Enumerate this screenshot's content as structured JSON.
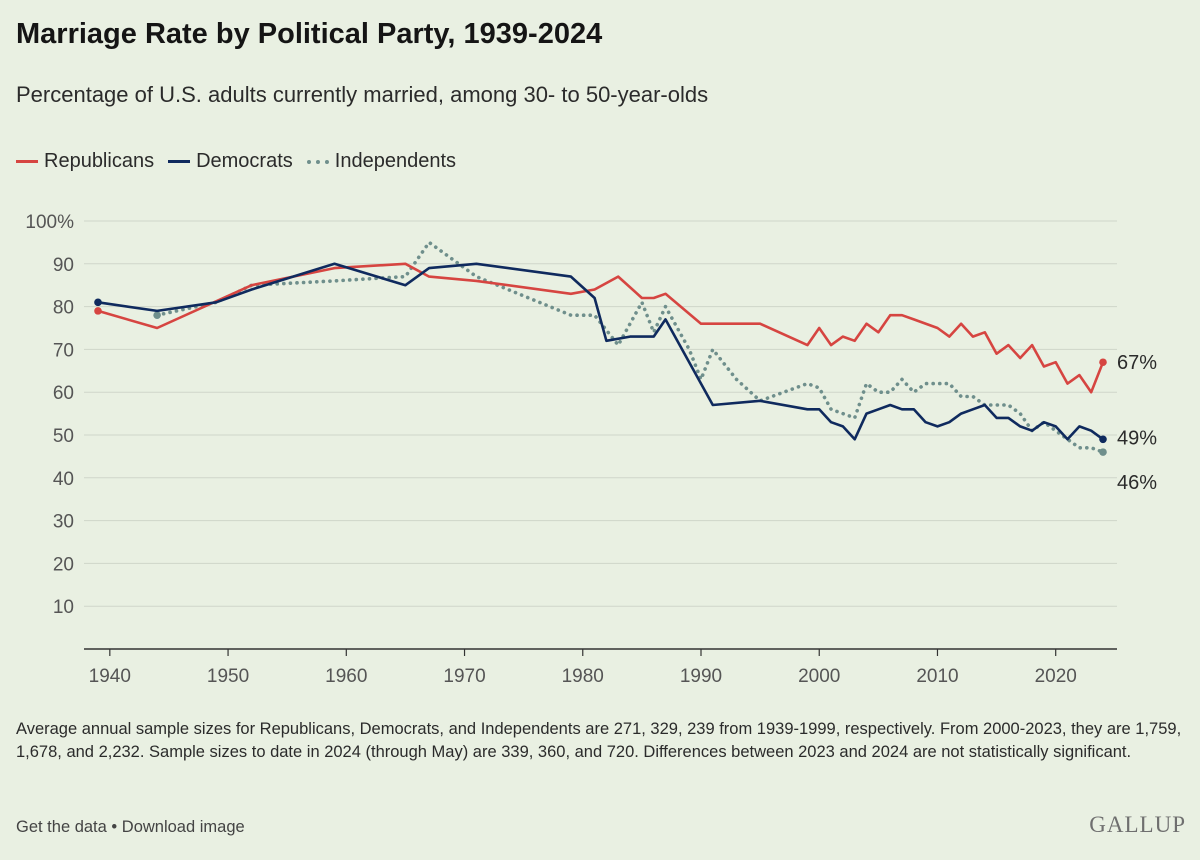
{
  "chart_data": {
    "type": "line",
    "title": "Marriage Rate by Political Party, 1939-2024",
    "subtitle": "Percentage of U.S. adults currently married, among 30- to 50-year-olds",
    "xlabel": "",
    "ylabel": "",
    "xlim": [
      1939,
      2024
    ],
    "ylim": [
      0,
      100
    ],
    "x_ticks": [
      "1940",
      "1950",
      "1960",
      "1970",
      "1980",
      "1990",
      "2000",
      "2010",
      "2020"
    ],
    "y_ticks": [
      "100%",
      "90",
      "80",
      "70",
      "60",
      "50",
      "40",
      "30",
      "20",
      "10"
    ],
    "grid": true,
    "legend_position": "top-left",
    "series": [
      {
        "name": "Republicans",
        "color": "#d64541",
        "style": "solid",
        "end_label": "67%",
        "points": [
          [
            1939,
            79
          ],
          [
            1944,
            75
          ],
          [
            1952,
            85
          ],
          [
            1959,
            89
          ],
          [
            1965,
            90
          ],
          [
            1967,
            87
          ],
          [
            1971,
            86
          ],
          [
            1979,
            83
          ],
          [
            1981,
            84
          ],
          [
            1983,
            87
          ],
          [
            1985,
            82
          ],
          [
            1986,
            82
          ],
          [
            1987,
            83
          ],
          [
            1990,
            76
          ],
          [
            1995,
            76
          ],
          [
            1999,
            71
          ],
          [
            2000,
            75
          ],
          [
            2001,
            71
          ],
          [
            2002,
            73
          ],
          [
            2003,
            72
          ],
          [
            2004,
            76
          ],
          [
            2005,
            74
          ],
          [
            2006,
            78
          ],
          [
            2007,
            78
          ],
          [
            2008,
            77
          ],
          [
            2010,
            75
          ],
          [
            2011,
            73
          ],
          [
            2012,
            76
          ],
          [
            2013,
            73
          ],
          [
            2014,
            74
          ],
          [
            2015,
            69
          ],
          [
            2016,
            71
          ],
          [
            2017,
            68
          ],
          [
            2018,
            71
          ],
          [
            2019,
            66
          ],
          [
            2020,
            67
          ],
          [
            2021,
            62
          ],
          [
            2022,
            64
          ],
          [
            2023,
            60
          ],
          [
            2024,
            67
          ]
        ]
      },
      {
        "name": "Democrats",
        "color": "#0f2a5e",
        "style": "solid",
        "end_label": "49%",
        "points": [
          [
            1939,
            81
          ],
          [
            1944,
            79
          ],
          [
            1949,
            81
          ],
          [
            1952,
            84
          ],
          [
            1959,
            90
          ],
          [
            1965,
            85
          ],
          [
            1967,
            89
          ],
          [
            1971,
            90
          ],
          [
            1979,
            87
          ],
          [
            1981,
            82
          ],
          [
            1982,
            72
          ],
          [
            1984,
            73
          ],
          [
            1986,
            73
          ],
          [
            1987,
            77
          ],
          [
            1991,
            57
          ],
          [
            1995,
            58
          ],
          [
            1999,
            56
          ],
          [
            2000,
            56
          ],
          [
            2001,
            53
          ],
          [
            2002,
            52
          ],
          [
            2003,
            49
          ],
          [
            2004,
            55
          ],
          [
            2005,
            56
          ],
          [
            2006,
            57
          ],
          [
            2007,
            56
          ],
          [
            2008,
            56
          ],
          [
            2009,
            53
          ],
          [
            2010,
            52
          ],
          [
            2011,
            53
          ],
          [
            2012,
            55
          ],
          [
            2013,
            56
          ],
          [
            2014,
            57
          ],
          [
            2015,
            54
          ],
          [
            2016,
            54
          ],
          [
            2017,
            52
          ],
          [
            2018,
            51
          ],
          [
            2019,
            53
          ],
          [
            2020,
            52
          ],
          [
            2021,
            49
          ],
          [
            2022,
            52
          ],
          [
            2023,
            51
          ],
          [
            2024,
            49
          ]
        ]
      },
      {
        "name": "Independents",
        "color": "#6f8f8c",
        "style": "dotted",
        "end_label": "46%",
        "points": [
          [
            1944,
            78
          ],
          [
            1949,
            81
          ],
          [
            1952,
            85
          ],
          [
            1959,
            86
          ],
          [
            1965,
            87
          ],
          [
            1967,
            95
          ],
          [
            1971,
            87
          ],
          [
            1979,
            78
          ],
          [
            1981,
            78
          ],
          [
            1983,
            71
          ],
          [
            1985,
            81
          ],
          [
            1986,
            74
          ],
          [
            1987,
            80
          ],
          [
            1989,
            70
          ],
          [
            1990,
            63
          ],
          [
            1991,
            70
          ],
          [
            1993,
            63
          ],
          [
            1995,
            58
          ],
          [
            1999,
            62
          ],
          [
            2000,
            61
          ],
          [
            2001,
            56
          ],
          [
            2002,
            55
          ],
          [
            2003,
            54
          ],
          [
            2004,
            62
          ],
          [
            2005,
            60
          ],
          [
            2006,
            60
          ],
          [
            2007,
            63
          ],
          [
            2008,
            60
          ],
          [
            2009,
            62
          ],
          [
            2010,
            62
          ],
          [
            2011,
            62
          ],
          [
            2012,
            59
          ],
          [
            2013,
            59
          ],
          [
            2014,
            57
          ],
          [
            2015,
            57
          ],
          [
            2016,
            57
          ],
          [
            2017,
            55
          ],
          [
            2018,
            51
          ],
          [
            2019,
            53
          ],
          [
            2020,
            51
          ],
          [
            2021,
            49
          ],
          [
            2022,
            47
          ],
          [
            2023,
            47
          ],
          [
            2024,
            46
          ]
        ]
      }
    ]
  },
  "footnote": "Average annual sample sizes for Republicans, Democrats, and Independents are 271, 329, 239 from 1939-1999, respectively. From 2000-2023, they are 1,759, 1,678, and 2,232. Sample sizes to date in 2024 (through May) are 339, 360, and 720. Differences between 2023 and 2024 are not statistically significant.",
  "links": {
    "get_data": "Get the data",
    "separator": " • ",
    "download": "Download image"
  },
  "brand": "GALLUP"
}
